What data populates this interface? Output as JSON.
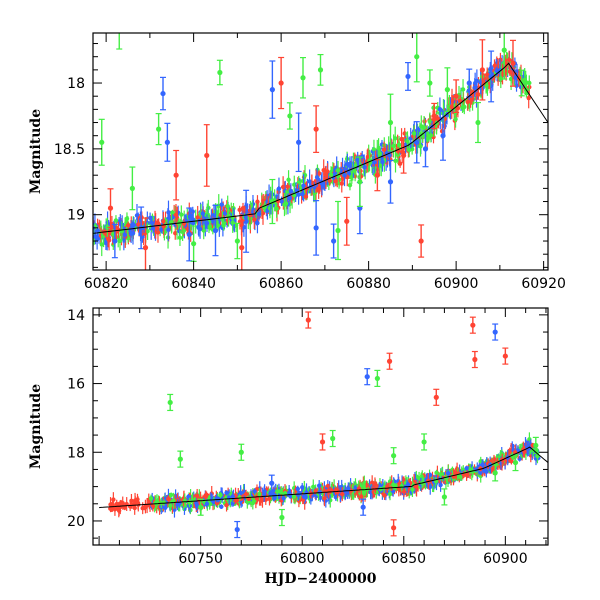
{
  "chart_data": [
    {
      "type": "scatter",
      "title": "",
      "xlabel": "",
      "ylabel": "Magnitude",
      "xlim": [
        60817,
        60921
      ],
      "ylim": [
        19.42,
        17.62
      ],
      "y_inverted": true,
      "xticks": [
        60820,
        60840,
        60860,
        60880,
        60900,
        60920
      ],
      "yticks": [
        18,
        18.5,
        19
      ],
      "ytick_labels": [
        "18",
        "18.5",
        "19"
      ],
      "series": [
        {
          "color": "#3366ff",
          "x": [
            60822,
            60828,
            60833,
            60834,
            60839,
            60845,
            60852,
            60858,
            60864,
            60868,
            60872,
            60878,
            60885,
            60889,
            60891,
            60893,
            60897,
            60903,
            60908
          ],
          "y": [
            19.2,
            19.1,
            18.08,
            18.45,
            19.15,
            19.12,
            19.05,
            18.05,
            18.45,
            19.1,
            19.2,
            18.95,
            18.75,
            17.95,
            18.45,
            18.5,
            18.4,
            18.0,
            17.95
          ]
        },
        {
          "color": "#44ee44",
          "x": [
            60819,
            60823,
            60826,
            60832,
            60840,
            60846,
            60850,
            60858,
            60862,
            60865,
            60869,
            60873,
            60878,
            60885,
            60891,
            60894,
            60898,
            60905,
            60911,
            60915
          ],
          "y": [
            18.45,
            17.6,
            18.8,
            18.35,
            19.22,
            17.92,
            19.2,
            18.9,
            18.25,
            17.96,
            17.9,
            19.12,
            18.75,
            18.3,
            17.8,
            18.0,
            18.05,
            18.3,
            17.75,
            18.0
          ]
        },
        {
          "color": "#ff4433",
          "x": [
            60821,
            60829,
            60836,
            60843,
            60851,
            60860,
            60868,
            60875,
            60882,
            60888,
            60892,
            60895,
            60900,
            60906,
            60913
          ],
          "y": [
            18.95,
            19.25,
            18.7,
            18.55,
            19.25,
            18.0,
            18.35,
            19.05,
            18.7,
            18.55,
            19.2,
            18.25,
            18.1,
            17.9,
            17.85
          ]
        }
      ]
    },
    {
      "type": "scatter",
      "title": "",
      "xlabel": "HJD−2400000",
      "ylabel": "Magnitude",
      "xlim": [
        60697,
        60921
      ],
      "ylim": [
        20.7,
        13.8
      ],
      "y_inverted": true,
      "xticks": [
        60750,
        60800,
        60850,
        60900
      ],
      "yticks": [
        14,
        16,
        18,
        20
      ],
      "ytick_labels": [
        "14",
        "16",
        "18",
        "20"
      ],
      "series": [
        {
          "color": "#3366ff",
          "x": [
            60768,
            60785,
            60832,
            60895,
            60830
          ],
          "y": [
            20.25,
            18.9,
            15.8,
            14.5,
            19.6
          ]
        },
        {
          "color": "#44ee44",
          "x": [
            60735,
            60740,
            60750,
            60770,
            60790,
            60815,
            60837,
            60845,
            60860,
            60870,
            60895,
            60905,
            60915
          ],
          "y": [
            16.55,
            18.2,
            19.6,
            18.0,
            19.9,
            17.6,
            15.85,
            18.1,
            17.7,
            19.3,
            18.6,
            18.3,
            17.8
          ]
        },
        {
          "color": "#ff4433",
          "x": [
            60803,
            60810,
            60843,
            60845,
            60866,
            60884,
            60885,
            60900
          ],
          "y": [
            14.15,
            17.7,
            15.35,
            20.2,
            16.4,
            14.3,
            15.3,
            15.2
          ]
        }
      ]
    }
  ]
}
